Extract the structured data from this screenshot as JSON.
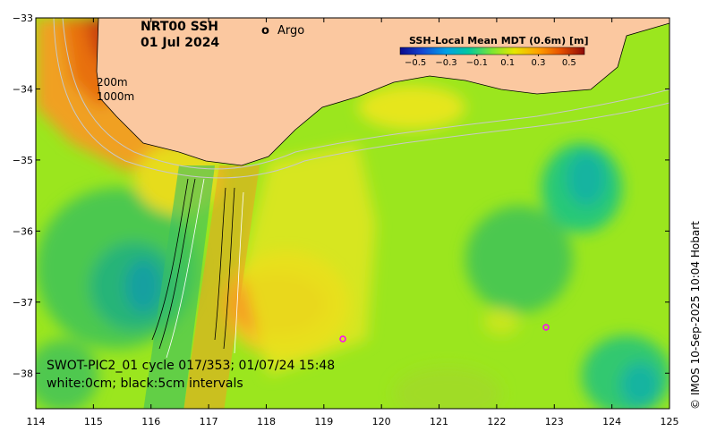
{
  "title": {
    "line1": "NRT00 SSH",
    "line2": "01 Jul 2024"
  },
  "legend": {
    "marker": "o",
    "label": "Argo",
    "marker_color": "#ff00ff"
  },
  "colorbar": {
    "title": "SSH-Local Mean MDT (0.6m) [m]",
    "ticks": [
      "−0.5",
      "−0.3",
      "−0.1",
      "0.1",
      "0.3",
      "0.5"
    ],
    "range": [
      -0.6,
      0.6
    ]
  },
  "depth_labels": {
    "shallow": "200m",
    "deep": "1000m"
  },
  "swot_annotation": {
    "line1": "SWOT-PIC2_01 cycle 017/353; 01/07/24 15:48",
    "line2": "white:0cm; black:5cm intervals"
  },
  "credit": "© IMOS 10-Sep-2025 10:04 Hobart",
  "axes": {
    "x_ticks": [
      "114",
      "115",
      "116",
      "117",
      "118",
      "119",
      "120",
      "121",
      "122",
      "123",
      "124",
      "125"
    ],
    "y_ticks": [
      "−33",
      "−34",
      "−35",
      "−36",
      "−37",
      "−38"
    ],
    "x_range": [
      114,
      125
    ],
    "y_range": [
      -38.5,
      -33
    ]
  },
  "colors": {
    "land": "#fbc8a0",
    "ocean_base": "#9be61e"
  }
}
